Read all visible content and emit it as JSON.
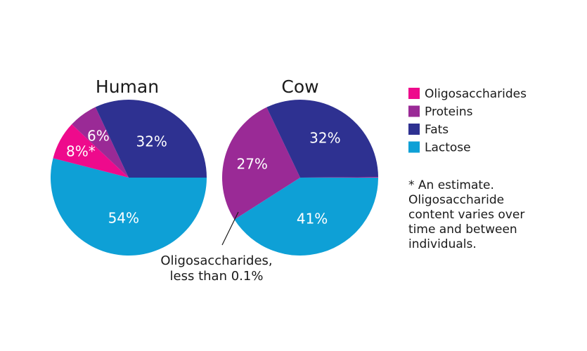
{
  "chart_data": [
    {
      "type": "pie",
      "title": "Human",
      "slices": [
        {
          "name": "Lactose",
          "value": 54,
          "label": "54%",
          "color": "#0ea0d6"
        },
        {
          "name": "Oligosaccharides",
          "value": 8,
          "label": "8%*",
          "color": "#ee0a8c"
        },
        {
          "name": "Proteins",
          "value": 6,
          "label": "6%",
          "color": "#9a2a96"
        },
        {
          "name": "Fats",
          "value": 32,
          "label": "32%",
          "color": "#2e3191"
        }
      ]
    },
    {
      "type": "pie",
      "title": "Cow",
      "slices": [
        {
          "name": "Lactose",
          "value": 41,
          "label": "41%",
          "color": "#0ea0d6"
        },
        {
          "name": "Proteins",
          "value": 27,
          "label": "27%",
          "color": "#9a2a96"
        },
        {
          "name": "Fats",
          "value": 32,
          "label": "32%",
          "color": "#2e3191"
        },
        {
          "name": "Oligosaccharides",
          "value": 0.1,
          "label": "",
          "color": "#ee0a8c"
        }
      ],
      "annotation": [
        "Oligosaccharides,",
        "less than 0.1%"
      ]
    }
  ],
  "legend": [
    {
      "label": "Oligosaccharides",
      "color": "#ee0a8c"
    },
    {
      "label": "Proteins",
      "color": "#9a2a96"
    },
    {
      "label": "Fats",
      "color": "#2e3191"
    },
    {
      "label": "Lactose",
      "color": "#0ea0d6"
    }
  ],
  "footnote": [
    "* An estimate.",
    "Oligosaccharide",
    "content varies over",
    "time and between",
    "individuals."
  ]
}
